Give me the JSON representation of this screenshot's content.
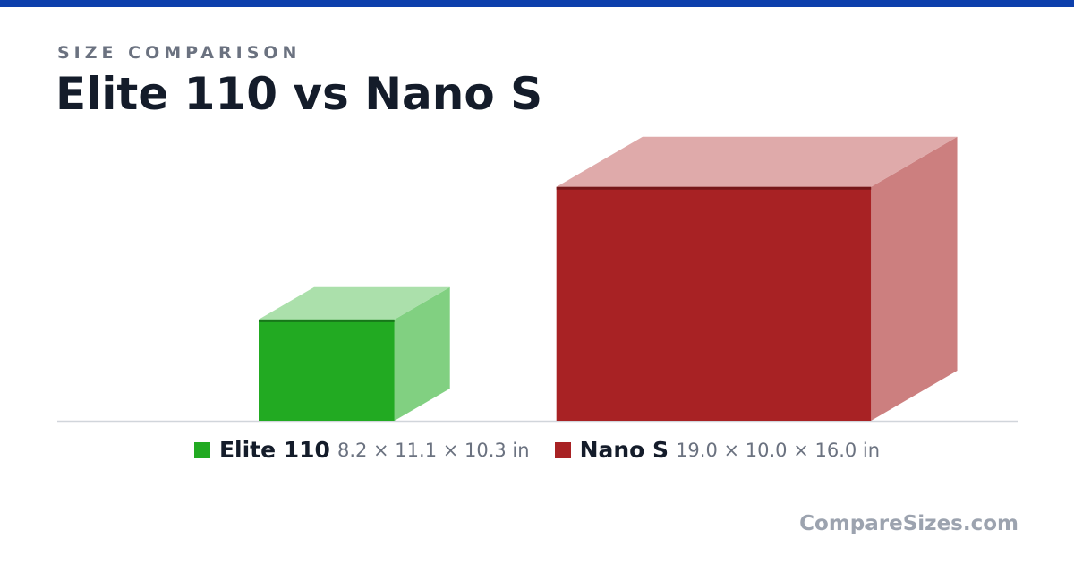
{
  "eyebrow": "SIZE COMPARISON",
  "title": "Elite 110 vs Nano S",
  "watermark": "CompareSizes.com",
  "colors": {
    "top_bar": "#0d3fac",
    "baseline": "#d1d5db"
  },
  "chart_data": {
    "type": "bar",
    "style": "3d-box",
    "title": "",
    "xlabel": "",
    "ylabel": "",
    "units": "in",
    "grid": false,
    "legend_position": "bottom",
    "dimension_order": [
      "width",
      "height",
      "depth"
    ],
    "series": [
      {
        "name": "Elite 110",
        "dims_label": "8.2 × 11.1 × 10.3 in",
        "width": 8.2,
        "height": 11.1,
        "depth": 10.3,
        "color": "#22aa22",
        "top_color": "#abe0ab",
        "side_color": "#81d081",
        "edge_color": "#17771a"
      },
      {
        "name": "Nano S",
        "dims_label": "19.0 × 10.0 × 16.0 in",
        "width": 19.0,
        "height": 10.0,
        "depth": 16.0,
        "color": "#a82224",
        "top_color": "#dfaaaa",
        "side_color": "#cc7f7f",
        "edge_color": "#761719"
      }
    ]
  }
}
